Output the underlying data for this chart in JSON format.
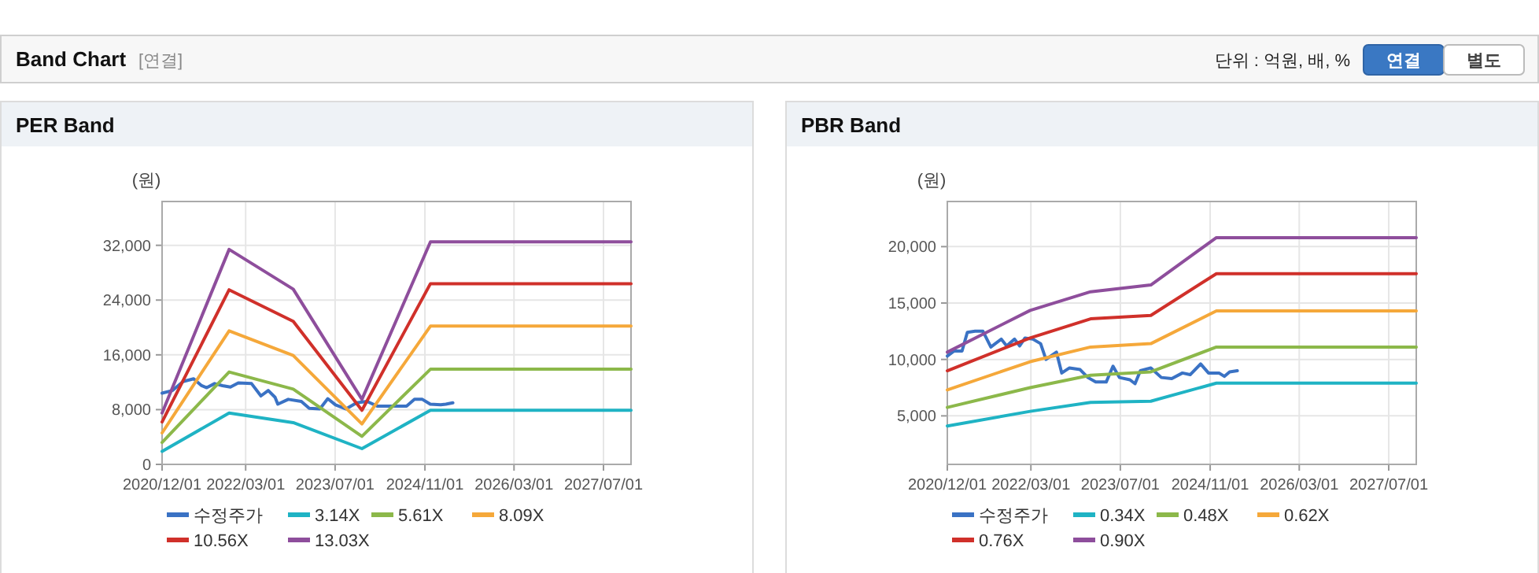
{
  "chart_data": [
    {
      "type": "other",
      "title": "Band Chart",
      "subtitle": "[연결]",
      "annotations": [
        "단위 : 억원, 배, %",
        "연결",
        "별도"
      ]
    },
    {
      "type": "line",
      "title": "PER Band",
      "ylabel": "(원)",
      "xlim": [
        "2020-12-01",
        "2027-11-28"
      ],
      "ylim": [
        0,
        38400
      ],
      "xticks": [
        {
          "value": "2020-12-01",
          "label": "2020/12/01"
        },
        {
          "value": "2022-03-01",
          "label": "2022/03/01"
        },
        {
          "value": "2023-07-01",
          "label": "2023/07/01"
        },
        {
          "value": "2024-11-01",
          "label": "2024/11/01"
        },
        {
          "value": "2026-03-01",
          "label": "2026/03/01"
        },
        {
          "value": "2027-07-01",
          "label": "2027/07/01"
        }
      ],
      "yticks": [
        0,
        {
          "value": 8000,
          "label": "8,000"
        },
        {
          "value": 16000,
          "label": "16,000"
        },
        {
          "value": 24000,
          "label": "24,000"
        },
        {
          "value": 32000,
          "label": "32,000"
        }
      ],
      "grid": true,
      "legend": "bottom",
      "line_style": "solid",
      "marker": "none",
      "series": [
        {
          "name": "수정주가",
          "color": "#3a72c4",
          "x": [
            "2020-12-01",
            "2021-01-27",
            "2021-03-25",
            "2021-05-22",
            "2021-07-04",
            "2021-08-01",
            "2021-09-13",
            "2021-10-26",
            "2021-12-08",
            "2022-01-20",
            "2022-04-02",
            "2022-05-23",
            "2022-07-02",
            "2022-08-08",
            "2022-08-23",
            "2022-10-19",
            "2022-12-29",
            "2023-02-10",
            "2023-04-09",
            "2023-05-22",
            "2023-07-03",
            "2023-08-30",
            "2023-10-26",
            "2023-12-22",
            "2024-02-17",
            "2024-05-13",
            "2024-07-24",
            "2024-09-05",
            "2024-10-18",
            "2024-11-30",
            "2025-01-26",
            "2025-02-23",
            "2025-04-02"
          ],
          "values": [
            10400,
            10800,
            12100,
            12500,
            11500,
            11200,
            11800,
            11500,
            11300,
            11900,
            11800,
            10000,
            10800,
            9800,
            8800,
            9500,
            9200,
            8200,
            8100,
            9600,
            8700,
            8100,
            9000,
            9200,
            8500,
            8500,
            8500,
            9500,
            9500,
            8800,
            8700,
            8800,
            9000
          ]
        },
        {
          "name": "3.14X",
          "color": "#1fb3c4",
          "x": [
            "2020-12-01",
            "2021-12-01",
            "2022-11-15",
            "2023-11-24",
            "2024-12-01",
            "2027-11-28"
          ],
          "values": [
            1900,
            7500,
            6100,
            2300,
            7900,
            7900
          ]
        },
        {
          "name": "5.61X",
          "color": "#8cb84a",
          "x": [
            "2020-12-01",
            "2021-12-01",
            "2022-11-15",
            "2023-11-24",
            "2024-12-01",
            "2027-11-28"
          ],
          "values": [
            3200,
            13500,
            11000,
            4100,
            13900,
            13900
          ]
        },
        {
          "name": "8.09X",
          "color": "#f5a83a",
          "x": [
            "2020-12-01",
            "2021-12-01",
            "2022-11-15",
            "2023-11-24",
            "2024-12-01",
            "2027-11-28"
          ],
          "values": [
            4600,
            19500,
            15900,
            5900,
            20200,
            20200
          ]
        },
        {
          "name": "10.56X",
          "color": "#d0302a",
          "x": [
            "2020-12-01",
            "2021-12-01",
            "2022-11-15",
            "2023-11-24",
            "2024-12-01",
            "2027-11-28"
          ],
          "values": [
            6200,
            25500,
            20900,
            7900,
            26400,
            26400
          ]
        },
        {
          "name": "13.03X",
          "color": "#8e4e9c",
          "x": [
            "2020-12-01",
            "2021-12-01",
            "2022-11-15",
            "2023-11-24",
            "2024-12-01",
            "2027-11-28"
          ],
          "values": [
            7500,
            31400,
            25600,
            9500,
            32500,
            32500
          ]
        }
      ]
    },
    {
      "type": "line",
      "title": "PBR Band",
      "ylabel": "(원)",
      "xlim": [
        "2020-12-01",
        "2027-11-28"
      ],
      "ylim": [
        700,
        24000
      ],
      "xticks": [
        {
          "value": "2020-12-01",
          "label": "2020/12/01"
        },
        {
          "value": "2022-03-01",
          "label": "2022/03/01"
        },
        {
          "value": "2023-07-01",
          "label": "2023/07/01"
        },
        {
          "value": "2024-11-01",
          "label": "2024/11/01"
        },
        {
          "value": "2026-03-01",
          "label": "2026/03/01"
        },
        {
          "value": "2027-07-01",
          "label": "2027/07/01"
        }
      ],
      "yticks": [
        {
          "value": 5000,
          "label": "5,000"
        },
        {
          "value": 10000,
          "label": "10,000"
        },
        {
          "value": 15000,
          "label": "15,000"
        },
        {
          "value": 20000,
          "label": "20,000"
        }
      ],
      "grid": true,
      "legend": "bottom",
      "line_style": "solid",
      "marker": "none",
      "series": [
        {
          "name": "수정주가",
          "color": "#3a72c4",
          "x": [
            "2020-12-01",
            "2021-01-07",
            "2021-02-19",
            "2021-03-20",
            "2021-05-01",
            "2021-06-13",
            "2021-07-26",
            "2021-09-21",
            "2021-10-20",
            "2021-12-02",
            "2021-12-30",
            "2022-01-28",
            "2022-03-12",
            "2022-04-23",
            "2022-05-22",
            "2022-07-18",
            "2022-08-16",
            "2022-09-27",
            "2022-11-24",
            "2023-01-05",
            "2023-02-17",
            "2023-04-15",
            "2023-05-22",
            "2023-06-26",
            "2023-08-22",
            "2023-09-19",
            "2023-10-18",
            "2023-12-14",
            "2024-02-09",
            "2024-04-06",
            "2024-06-03",
            "2024-07-15",
            "2024-09-10",
            "2024-10-23",
            "2024-12-19",
            "2025-01-17",
            "2025-02-15",
            "2025-03-29"
          ],
          "values": [
            10300,
            10750,
            10750,
            12400,
            12500,
            12500,
            11100,
            11800,
            11200,
            11800,
            11200,
            11900,
            11800,
            11400,
            10000,
            10650,
            8800,
            9250,
            9100,
            8400,
            8000,
            8000,
            9400,
            8400,
            8200,
            7850,
            9000,
            9250,
            8400,
            8300,
            8800,
            8650,
            9600,
            8800,
            8800,
            8500,
            8900,
            9000
          ]
        },
        {
          "name": "0.34X",
          "color": "#1fb3c4",
          "x": [
            "2020-12-01",
            "2022-02-25",
            "2023-01-20",
            "2023-12-14",
            "2024-12-05",
            "2027-11-28"
          ],
          "values": [
            4100,
            5400,
            6200,
            6300,
            7900,
            7900
          ]
        },
        {
          "name": "0.48X",
          "color": "#8cb84a",
          "x": [
            "2020-12-01",
            "2022-02-25",
            "2023-01-20",
            "2023-12-14",
            "2024-12-05",
            "2027-11-28"
          ],
          "values": [
            5750,
            7500,
            8600,
            8900,
            11100,
            11100
          ]
        },
        {
          "name": "0.62X",
          "color": "#f5a83a",
          "x": [
            "2020-12-01",
            "2022-02-25",
            "2023-01-20",
            "2023-12-14",
            "2024-12-05",
            "2027-11-28"
          ],
          "values": [
            7300,
            9800,
            11100,
            11400,
            14300,
            14300
          ]
        },
        {
          "name": "0.76X",
          "color": "#d0302a",
          "x": [
            "2020-12-01",
            "2022-02-25",
            "2023-01-20",
            "2023-12-14",
            "2024-12-05",
            "2027-11-28"
          ],
          "values": [
            9000,
            11900,
            13600,
            13900,
            17600,
            17600
          ]
        },
        {
          "name": "0.90X",
          "color": "#8e4e9c",
          "x": [
            "2020-12-01",
            "2022-02-25",
            "2023-01-20",
            "2023-12-14",
            "2024-12-05",
            "2027-11-28"
          ],
          "values": [
            10650,
            14350,
            16000,
            16600,
            20800,
            20800
          ]
        }
      ]
    }
  ]
}
